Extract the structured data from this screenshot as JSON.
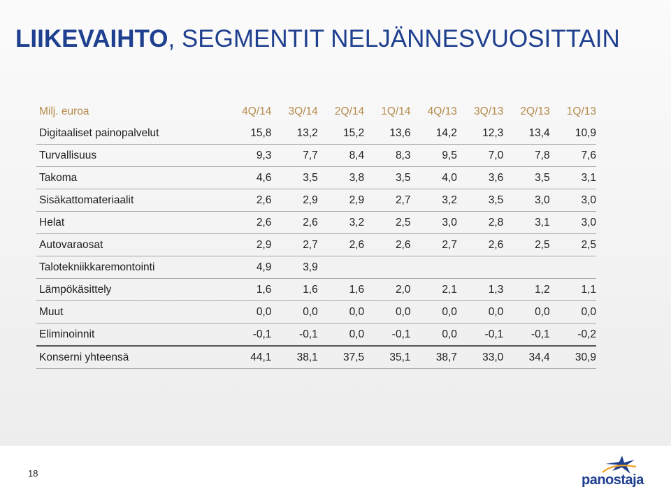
{
  "title": {
    "bold_part": "LIIKEVAIHTO",
    "rest": ", SEGMENTIT NELJÄNNESVUOSITTAIN"
  },
  "table": {
    "unit_label": "Milj. euroa",
    "columns": [
      "4Q/14",
      "3Q/14",
      "2Q/14",
      "1Q/14",
      "4Q/13",
      "3Q/13",
      "2Q/13",
      "1Q/13"
    ],
    "rows": [
      {
        "label": "Digitaaliset painopalvelut",
        "values": [
          "15,8",
          "13,2",
          "15,2",
          "13,6",
          "14,2",
          "12,3",
          "13,4",
          "10,9"
        ]
      },
      {
        "label": "Turvallisuus",
        "values": [
          "9,3",
          "7,7",
          "8,4",
          "8,3",
          "9,5",
          "7,0",
          "7,8",
          "7,6"
        ]
      },
      {
        "label": "Takoma",
        "values": [
          "4,6",
          "3,5",
          "3,8",
          "3,5",
          "4,0",
          "3,6",
          "3,5",
          "3,1"
        ]
      },
      {
        "label": "Sisäkattomateriaalit",
        "values": [
          "2,6",
          "2,9",
          "2,9",
          "2,7",
          "3,2",
          "3,5",
          "3,0",
          "3,0"
        ]
      },
      {
        "label": "Helat",
        "values": [
          "2,6",
          "2,6",
          "3,2",
          "2,5",
          "3,0",
          "2,8",
          "3,1",
          "3,0"
        ]
      },
      {
        "label": "Autovaraosat",
        "values": [
          "2,9",
          "2,7",
          "2,6",
          "2,6",
          "2,7",
          "2,6",
          "2,5",
          "2,5"
        ]
      },
      {
        "label": "Talotekniikkaremontointi",
        "values": [
          "4,9",
          "3,9",
          "",
          "",
          "",
          "",
          "",
          ""
        ]
      },
      {
        "label": "Lämpökäsittely",
        "values": [
          "1,6",
          "1,6",
          "1,6",
          "2,0",
          "2,1",
          "1,3",
          "1,2",
          "1,1"
        ]
      },
      {
        "label": "Muut",
        "values": [
          "0,0",
          "0,0",
          "0,0",
          "0,0",
          "0,0",
          "0,0",
          "0,0",
          "0,0"
        ]
      },
      {
        "label": "Eliminoinnit",
        "values": [
          "-0,1",
          "-0,1",
          "0,0",
          "-0,1",
          "0,0",
          "-0,1",
          "-0,1",
          "-0,2"
        ]
      },
      {
        "label": "Konserni yhteensä",
        "values": [
          "44,1",
          "38,1",
          "37,5",
          "35,1",
          "38,7",
          "33,0",
          "34,4",
          "30,9"
        ]
      }
    ]
  },
  "footer": {
    "page_number": "18",
    "logo_text": "panostaja"
  },
  "colors": {
    "title": "#1f3f8f",
    "header": "#b48a4a",
    "logo": "#1f3f8f"
  }
}
